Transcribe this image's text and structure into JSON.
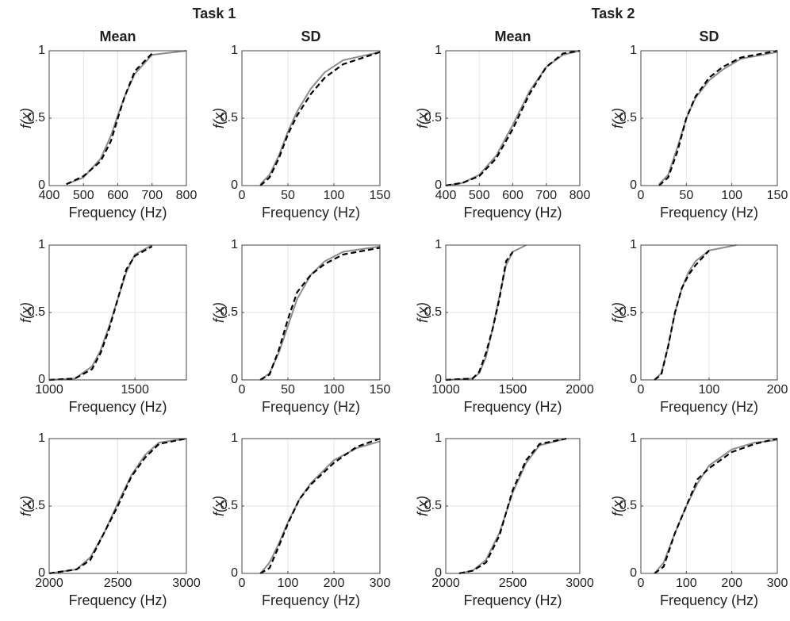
{
  "groups": [
    "Task 1",
    "Task 2"
  ],
  "chart_data": [
    {
      "type": "line",
      "title": "Mean",
      "xlabel": "Frequency (Hz)",
      "ylabel": "f(x)",
      "xlim": [
        400,
        800
      ],
      "xticks": [
        400,
        500,
        600,
        700,
        800
      ],
      "ylim": [
        0,
        1
      ],
      "yticks": [
        0,
        0.5,
        1
      ],
      "grid": true,
      "x": [
        450,
        500,
        550,
        580,
        600,
        620,
        650,
        700,
        800
      ],
      "series": [
        {
          "color": "#8c8c8c",
          "dash": false,
          "values": [
            0.01,
            0.06,
            0.2,
            0.37,
            0.52,
            0.66,
            0.83,
            0.97,
            1
          ]
        },
        {
          "color": "#000000",
          "dash": true,
          "values": [
            0.01,
            0.07,
            0.18,
            0.33,
            0.5,
            0.66,
            0.85,
            0.98,
            null
          ]
        }
      ]
    },
    {
      "type": "line",
      "title": "SD",
      "xlabel": "Frequency (Hz)",
      "ylabel": "f(x)",
      "xlim": [
        0,
        150
      ],
      "xticks": [
        0,
        50,
        100,
        150
      ],
      "ylim": [
        0,
        1
      ],
      "yticks": [
        0,
        0.5,
        1
      ],
      "grid": true,
      "x": [
        20,
        30,
        40,
        50,
        60,
        75,
        90,
        110,
        150
      ],
      "series": [
        {
          "color": "#8c8c8c",
          "dash": false,
          "values": [
            0.01,
            0.08,
            0.22,
            0.4,
            0.55,
            0.72,
            0.84,
            0.93,
            0.99
          ]
        },
        {
          "color": "#000000",
          "dash": true,
          "values": [
            0,
            0.06,
            0.2,
            0.38,
            0.52,
            0.68,
            0.8,
            0.9,
            0.99
          ]
        }
      ]
    },
    {
      "type": "line",
      "title": "Mean",
      "xlabel": "Frequency (Hz)",
      "ylabel": "f(x)",
      "xlim": [
        400,
        800
      ],
      "xticks": [
        400,
        500,
        600,
        700,
        800
      ],
      "ylim": [
        0,
        1
      ],
      "yticks": [
        0,
        0.5,
        1
      ],
      "grid": true,
      "x": [
        400,
        450,
        500,
        550,
        600,
        650,
        700,
        750,
        800
      ],
      "series": [
        {
          "color": "#8c8c8c",
          "dash": false,
          "values": [
            0,
            0.02,
            0.08,
            0.22,
            0.45,
            0.7,
            0.88,
            0.97,
            1
          ]
        },
        {
          "color": "#000000",
          "dash": true,
          "values": [
            0,
            0.02,
            0.07,
            0.2,
            0.42,
            0.68,
            0.88,
            0.98,
            1
          ]
        }
      ]
    },
    {
      "type": "line",
      "title": "SD",
      "xlabel": "Frequency (Hz)",
      "ylabel": "f(x)",
      "xlim": [
        0,
        150
      ],
      "xticks": [
        0,
        50,
        100,
        150
      ],
      "ylim": [
        0,
        1
      ],
      "yticks": [
        0,
        0.5,
        1
      ],
      "grid": true,
      "x": [
        20,
        30,
        40,
        50,
        60,
        75,
        90,
        110,
        150
      ],
      "series": [
        {
          "color": "#8c8c8c",
          "dash": false,
          "values": [
            0.01,
            0.08,
            0.28,
            0.5,
            0.65,
            0.78,
            0.86,
            0.94,
            0.99
          ]
        },
        {
          "color": "#000000",
          "dash": true,
          "values": [
            0,
            0.06,
            0.25,
            0.5,
            0.66,
            0.8,
            0.88,
            0.95,
            1
          ]
        }
      ]
    },
    {
      "type": "line",
      "xlabel": "Frequency (Hz)",
      "ylabel": "f(x)",
      "xlim": [
        1000,
        1800
      ],
      "xticks": [
        1000,
        1500
      ],
      "ylim": [
        0,
        1
      ],
      "yticks": [
        0,
        0.5,
        1
      ],
      "grid": true,
      "x": [
        1000,
        1150,
        1250,
        1300,
        1350,
        1400,
        1450,
        1500,
        1600
      ],
      "series": [
        {
          "color": "#8c8c8c",
          "dash": false,
          "values": [
            0,
            0.01,
            0.1,
            0.22,
            0.4,
            0.6,
            0.8,
            0.93,
            1
          ]
        },
        {
          "color": "#000000",
          "dash": true,
          "values": [
            0,
            0.01,
            0.08,
            0.2,
            0.38,
            0.6,
            0.82,
            0.92,
            0.99
          ]
        }
      ]
    },
    {
      "type": "line",
      "xlabel": "Frequency (Hz)",
      "ylabel": "f(x)",
      "xlim": [
        0,
        150
      ],
      "xticks": [
        0,
        50,
        100,
        150
      ],
      "ylim": [
        0,
        1
      ],
      "yticks": [
        0,
        0.5,
        1
      ],
      "grid": true,
      "x": [
        20,
        30,
        40,
        50,
        60,
        75,
        90,
        110,
        150
      ],
      "series": [
        {
          "color": "#8c8c8c",
          "dash": false,
          "values": [
            0,
            0.05,
            0.2,
            0.4,
            0.6,
            0.78,
            0.88,
            0.95,
            0.99
          ]
        },
        {
          "color": "#000000",
          "dash": true,
          "values": [
            0,
            0.04,
            0.22,
            0.45,
            0.65,
            0.78,
            0.86,
            0.93,
            0.98
          ]
        }
      ]
    },
    {
      "type": "line",
      "xlabel": "Frequency (Hz)",
      "ylabel": "f(x)",
      "xlim": [
        1000,
        2000
      ],
      "xticks": [
        1000,
        1500,
        2000
      ],
      "ylim": [
        0,
        1
      ],
      "yticks": [
        0,
        0.5,
        1
      ],
      "grid": true,
      "x": [
        1000,
        1200,
        1250,
        1300,
        1350,
        1400,
        1450,
        1500,
        1600
      ],
      "series": [
        {
          "color": "#8c8c8c",
          "dash": false,
          "values": [
            0,
            0.01,
            0.05,
            0.17,
            0.38,
            0.62,
            0.85,
            0.95,
            1
          ]
        },
        {
          "color": "#000000",
          "dash": true,
          "values": [
            0,
            0.01,
            0.06,
            0.2,
            0.38,
            0.6,
            0.88,
            0.95,
            null
          ]
        }
      ]
    },
    {
      "type": "line",
      "xlabel": "Frequency (Hz)",
      "ylabel": "f(x)",
      "xlim": [
        0,
        200
      ],
      "xticks": [
        0,
        100,
        200
      ],
      "ylim": [
        0,
        1
      ],
      "yticks": [
        0,
        0.5,
        1
      ],
      "grid": true,
      "x": [
        20,
        30,
        40,
        50,
        60,
        70,
        80,
        100,
        140
      ],
      "series": [
        {
          "color": "#8c8c8c",
          "dash": false,
          "values": [
            0,
            0.05,
            0.25,
            0.5,
            0.68,
            0.8,
            0.88,
            0.96,
            1
          ]
        },
        {
          "color": "#000000",
          "dash": true,
          "values": [
            0,
            0.04,
            0.25,
            0.5,
            0.68,
            0.78,
            0.85,
            0.96,
            null
          ]
        }
      ]
    },
    {
      "type": "line",
      "xlabel": "Frequency (Hz)",
      "ylabel": "f(x)",
      "xlim": [
        2000,
        3000
      ],
      "xticks": [
        2000,
        2500,
        3000
      ],
      "ylim": [
        0,
        1
      ],
      "yticks": [
        0,
        0.5,
        1
      ],
      "grid": true,
      "x": [
        2000,
        2200,
        2300,
        2400,
        2500,
        2600,
        2700,
        2800,
        3000
      ],
      "series": [
        {
          "color": "#8c8c8c",
          "dash": false,
          "values": [
            0,
            0.03,
            0.12,
            0.3,
            0.52,
            0.73,
            0.88,
            0.97,
            1
          ]
        },
        {
          "color": "#000000",
          "dash": true,
          "values": [
            0,
            0.03,
            0.1,
            0.3,
            0.5,
            0.72,
            0.86,
            0.96,
            1
          ]
        }
      ]
    },
    {
      "type": "line",
      "xlabel": "Frequency (Hz)",
      "ylabel": "f(x)",
      "xlim": [
        0,
        300
      ],
      "xticks": [
        0,
        100,
        200,
        300
      ],
      "ylim": [
        0,
        1
      ],
      "yticks": [
        0,
        0.5,
        1
      ],
      "grid": true,
      "x": [
        40,
        60,
        80,
        100,
        125,
        150,
        200,
        250,
        300
      ],
      "series": [
        {
          "color": "#8c8c8c",
          "dash": false,
          "values": [
            0,
            0.08,
            0.22,
            0.38,
            0.55,
            0.67,
            0.84,
            0.93,
            0.98
          ]
        },
        {
          "color": "#000000",
          "dash": true,
          "values": [
            0,
            0.04,
            0.2,
            0.37,
            0.55,
            0.66,
            0.82,
            0.94,
            1
          ]
        }
      ]
    },
    {
      "type": "line",
      "xlabel": "Frequency (Hz)",
      "ylabel": "f(x)",
      "xlim": [
        2000,
        3000
      ],
      "xticks": [
        2000,
        2500,
        3000
      ],
      "ylim": [
        0,
        1
      ],
      "yticks": [
        0,
        0.5,
        1
      ],
      "grid": true,
      "x": [
        2100,
        2200,
        2300,
        2400,
        2450,
        2500,
        2600,
        2700,
        2900
      ],
      "series": [
        {
          "color": "#8c8c8c",
          "dash": false,
          "values": [
            0,
            0.02,
            0.1,
            0.3,
            0.45,
            0.6,
            0.82,
            0.95,
            1
          ]
        },
        {
          "color": "#000000",
          "dash": true,
          "values": [
            0,
            0.02,
            0.08,
            0.28,
            0.45,
            0.62,
            0.84,
            0.96,
            1
          ]
        }
      ]
    },
    {
      "type": "line",
      "xlabel": "Frequency (Hz)",
      "ylabel": "f(x)",
      "xlim": [
        0,
        300
      ],
      "xticks": [
        0,
        100,
        200,
        300
      ],
      "ylim": [
        0,
        1
      ],
      "yticks": [
        0,
        0.5,
        1
      ],
      "grid": true,
      "x": [
        30,
        50,
        75,
        100,
        125,
        150,
        200,
        250,
        300
      ],
      "series": [
        {
          "color": "#8c8c8c",
          "dash": false,
          "values": [
            0,
            0.08,
            0.3,
            0.5,
            0.67,
            0.8,
            0.92,
            0.97,
            0.99
          ]
        },
        {
          "color": "#000000",
          "dash": true,
          "values": [
            0,
            0.05,
            0.3,
            0.5,
            0.7,
            0.78,
            0.9,
            0.96,
            1
          ]
        }
      ]
    }
  ]
}
